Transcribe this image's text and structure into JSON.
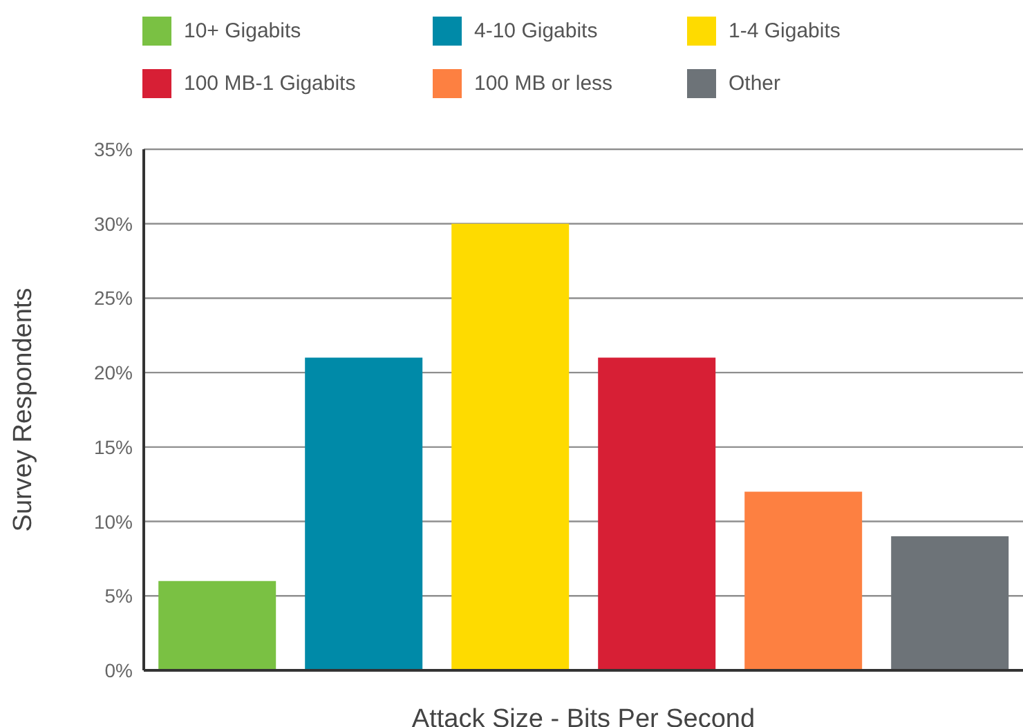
{
  "chart_data": {
    "type": "bar",
    "xlabel": "Attack Size - Bits Per Second",
    "ylabel": "Survey Respondents",
    "categories": [
      null,
      null,
      null,
      null,
      null,
      null
    ],
    "series": [
      {
        "name": "10+ Gigabits",
        "color": "#7ac143",
        "values": [
          6,
          null,
          null,
          null,
          null,
          null
        ]
      },
      {
        "name": "4-10 Gigabits",
        "color": "#008aa8",
        "values": [
          null,
          21,
          null,
          null,
          null,
          null
        ]
      },
      {
        "name": "1-4 Gigabits",
        "color": "#fedb00",
        "values": [
          null,
          null,
          30,
          null,
          null,
          null
        ]
      },
      {
        "name": "100 MB-1 Gigabits",
        "color": "#d71f35",
        "values": [
          null,
          null,
          null,
          21,
          null,
          null
        ]
      },
      {
        "name": "100 MB or less",
        "color": "#fd8041",
        "values": [
          null,
          null,
          null,
          null,
          12,
          null
        ]
      },
      {
        "name": "Other",
        "color": "#6d7378",
        "values": [
          null,
          null,
          null,
          null,
          null,
          9
        ]
      }
    ],
    "ylim": [
      0,
      35
    ],
    "yticks": [
      {
        "value": 0,
        "label": "0%"
      },
      {
        "value": 5,
        "label": "5%"
      },
      {
        "value": 10,
        "label": "10%"
      },
      {
        "value": 15,
        "label": "15%"
      },
      {
        "value": 20,
        "label": "20%"
      },
      {
        "value": 25,
        "label": "25%"
      },
      {
        "value": 30,
        "label": "30%"
      },
      {
        "value": 35,
        "label": "35%"
      }
    ],
    "grid": "y",
    "legend": "top",
    "tick_labels": "y"
  }
}
